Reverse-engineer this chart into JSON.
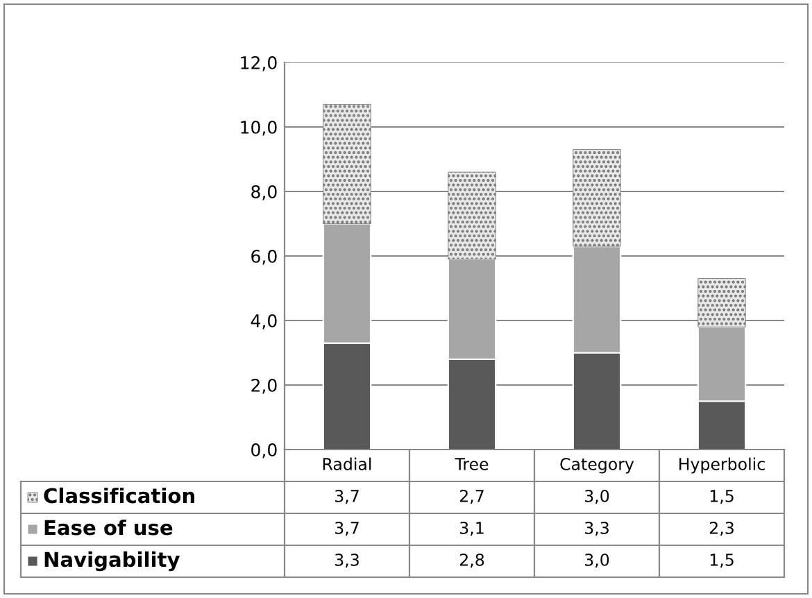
{
  "chart_data": {
    "type": "bar",
    "stacked": true,
    "categories": [
      "Radial",
      "Tree",
      "Category",
      "Hyperbolic"
    ],
    "series": [
      {
        "name": "Navigability",
        "color": "#595959",
        "values": [
          3.3,
          2.8,
          3.0,
          1.5
        ],
        "value_labels": [
          "3,3",
          "2,8",
          "3,0",
          "1,5"
        ]
      },
      {
        "name": "Ease of use",
        "color": "#a6a6a6",
        "values": [
          3.7,
          3.1,
          3.3,
          2.3
        ],
        "value_labels": [
          "3,7",
          "3,1",
          "3,3",
          "2,3"
        ]
      },
      {
        "name": "Classification",
        "color": "#707070",
        "values": [
          3.7,
          2.7,
          3.0,
          1.5
        ],
        "value_labels": [
          "3,7",
          "2,7",
          "3,0",
          "1,5"
        ]
      }
    ],
    "ylim": [
      0,
      12
    ],
    "yticks": [
      {
        "value": 0,
        "label": "0,0"
      },
      {
        "value": 2,
        "label": "2,0"
      },
      {
        "value": 4,
        "label": "4,0"
      },
      {
        "value": 6,
        "label": "6,0"
      },
      {
        "value": 8,
        "label": "8,0"
      },
      {
        "value": 10,
        "label": "10,0"
      },
      {
        "value": 12,
        "label": "12,0"
      }
    ],
    "grid": "y",
    "legend": "bottom"
  }
}
